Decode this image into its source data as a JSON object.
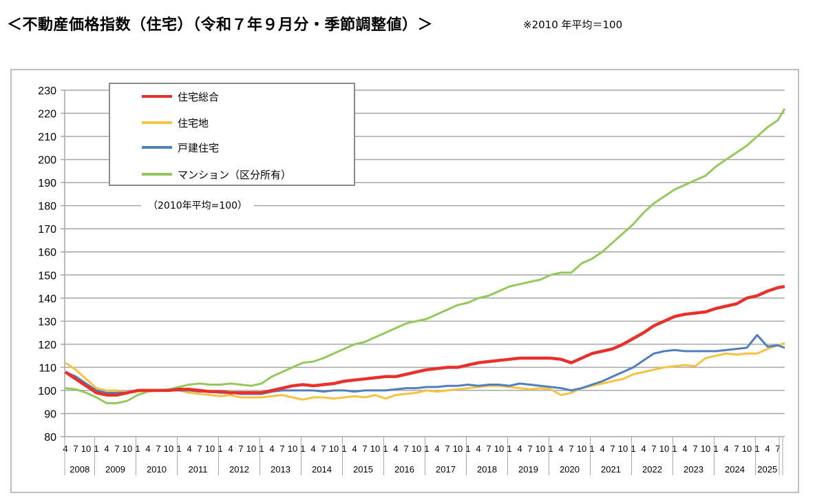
{
  "header": {
    "title": "＜不動産価格指数（住宅）（令和７年９月分・季節調整値）＞",
    "note": "※2010 年平均＝100"
  },
  "chart_data": {
    "type": "line",
    "annotation": "（2010年平均=100）",
    "ylim": [
      80,
      230
    ],
    "y_ticks": [
      "80",
      "90",
      "100",
      "110",
      "120",
      "130",
      "140",
      "150",
      "160",
      "170",
      "180",
      "190",
      "200",
      "210",
      "220",
      "230"
    ],
    "grid": true,
    "legend_position": "top-left",
    "x_axis": {
      "years": [
        {
          "year": "2008",
          "months": [
            "4",
            "7",
            "10"
          ]
        },
        {
          "year": "2009",
          "months": [
            "1",
            "4",
            "7",
            "10"
          ]
        },
        {
          "year": "2010",
          "months": [
            "1",
            "4",
            "7",
            "10"
          ]
        },
        {
          "year": "2011",
          "months": [
            "1",
            "4",
            "7",
            "10"
          ]
        },
        {
          "year": "2012",
          "months": [
            "1",
            "4",
            "7",
            "10"
          ]
        },
        {
          "year": "2013",
          "months": [
            "1",
            "4",
            "7",
            "10"
          ]
        },
        {
          "year": "2014",
          "months": [
            "1",
            "4",
            "7",
            "10"
          ]
        },
        {
          "year": "2015",
          "months": [
            "1",
            "4",
            "7",
            "10"
          ]
        },
        {
          "year": "2016",
          "months": [
            "1",
            "4",
            "7",
            "10"
          ]
        },
        {
          "year": "2017",
          "months": [
            "1",
            "4",
            "7",
            "10"
          ]
        },
        {
          "year": "2018",
          "months": [
            "1",
            "4",
            "7",
            "10"
          ]
        },
        {
          "year": "2019",
          "months": [
            "1",
            "4",
            "7",
            "10"
          ]
        },
        {
          "year": "2020",
          "months": [
            "1",
            "4",
            "7",
            "10"
          ]
        },
        {
          "year": "2021",
          "months": [
            "1",
            "4",
            "7",
            "10"
          ]
        },
        {
          "year": "2022",
          "months": [
            "1",
            "4",
            "7",
            "10"
          ]
        },
        {
          "year": "2023",
          "months": [
            "1",
            "4",
            "7",
            "10"
          ]
        },
        {
          "year": "2024",
          "months": [
            "1",
            "4",
            "7",
            "10"
          ]
        },
        {
          "year": "2025",
          "months": [
            "1",
            "4",
            "7"
          ]
        }
      ]
    },
    "x": [
      "2008-04",
      "2008-07",
      "2008-10",
      "2009-01",
      "2009-04",
      "2009-07",
      "2009-10",
      "2010-01",
      "2010-04",
      "2010-07",
      "2010-10",
      "2011-01",
      "2011-04",
      "2011-07",
      "2011-10",
      "2012-01",
      "2012-04",
      "2012-07",
      "2012-10",
      "2013-01",
      "2013-04",
      "2013-07",
      "2013-10",
      "2014-01",
      "2014-04",
      "2014-07",
      "2014-10",
      "2015-01",
      "2015-04",
      "2015-07",
      "2015-10",
      "2016-01",
      "2016-04",
      "2016-07",
      "2016-10",
      "2017-01",
      "2017-04",
      "2017-07",
      "2017-10",
      "2018-01",
      "2018-04",
      "2018-07",
      "2018-10",
      "2019-01",
      "2019-04",
      "2019-07",
      "2019-10",
      "2020-01",
      "2020-04",
      "2020-07",
      "2020-10",
      "2021-01",
      "2021-04",
      "2021-07",
      "2021-10",
      "2022-01",
      "2022-04",
      "2022-07",
      "2022-10",
      "2023-01",
      "2023-04",
      "2023-07",
      "2023-10",
      "2024-01",
      "2024-04",
      "2024-07",
      "2024-10",
      "2025-01",
      "2025-04",
      "2025-07",
      "2025-09"
    ],
    "series": [
      {
        "name": "住宅総合",
        "color": "#e8312a",
        "width": 4.5,
        "values": [
          108,
          105,
          102,
          99,
          98,
          98,
          99,
          100,
          100,
          100,
          100,
          100.5,
          100.5,
          100,
          99.5,
          99.5,
          99,
          99,
          99,
          99,
          100,
          101,
          102,
          102.5,
          102,
          102.5,
          103,
          104,
          104.5,
          105,
          105.5,
          106,
          106,
          107,
          108,
          109,
          109.5,
          110,
          110,
          111,
          112,
          112.5,
          113,
          113.5,
          114,
          114,
          114,
          114,
          113.5,
          112,
          114,
          116,
          117,
          118,
          120,
          122.5,
          125,
          128,
          130,
          132,
          133,
          133.5,
          134,
          135.5,
          136.5,
          137.5,
          140,
          141,
          143,
          144.5,
          145
        ]
      },
      {
        "name": "住宅地",
        "color": "#f7c142",
        "width": 3,
        "values": [
          112,
          109,
          105,
          101,
          100,
          100,
          99,
          99.5,
          100,
          100,
          100,
          100,
          99,
          98.5,
          98,
          97.5,
          98,
          97,
          97,
          97,
          97.5,
          98,
          97,
          96,
          97,
          97,
          96.5,
          97,
          97.5,
          97,
          98,
          96.5,
          98,
          98.5,
          99,
          100,
          99.5,
          100,
          100.5,
          101,
          101.5,
          102,
          102,
          101.5,
          101,
          100.5,
          101,
          100.5,
          98,
          99,
          101,
          102,
          103,
          104,
          105,
          107,
          108,
          109,
          110,
          110.5,
          111,
          110.5,
          114,
          115,
          116,
          115.5,
          116,
          116,
          118,
          119.5,
          120.5
        ]
      },
      {
        "name": "戸建住宅",
        "color": "#4f7fbf",
        "width": 3,
        "values": [
          108,
          106,
          103,
          100,
          99,
          99,
          99,
          100,
          100,
          100,
          100,
          100,
          100,
          99.5,
          99.5,
          99,
          99,
          98.5,
          98.5,
          98.5,
          99.5,
          100,
          100,
          100,
          100,
          99.5,
          100,
          100,
          99.5,
          100,
          100,
          100,
          100.5,
          101,
          101,
          101.5,
          101.5,
          102,
          102,
          102.5,
          102,
          102.5,
          102.5,
          102,
          103,
          102.5,
          102,
          101.5,
          101,
          100,
          101,
          102.5,
          104,
          106,
          108,
          110,
          113,
          116,
          117,
          117.5,
          117,
          117,
          117,
          117,
          117.5,
          118,
          118.5,
          124,
          119,
          119.5,
          118.5
        ]
      },
      {
        "name": "マンション（区分所有）",
        "color": "#93c95a",
        "width": 3,
        "values": [
          101,
          100.5,
          99,
          97,
          94.5,
          94.5,
          95.5,
          98,
          99.5,
          100,
          100.5,
          101.5,
          102.5,
          103,
          102.5,
          102.5,
          103,
          102.5,
          102,
          103,
          106,
          108,
          110,
          112,
          112.5,
          114,
          116,
          118,
          120,
          121,
          123,
          125,
          127,
          129,
          130,
          131,
          133,
          135,
          137,
          138,
          140,
          141,
          143,
          145,
          146,
          147,
          148,
          150,
          151,
          151,
          155,
          157,
          160,
          164,
          168,
          172,
          177,
          181,
          184,
          187,
          189,
          191,
          193,
          197,
          200,
          203,
          206,
          210,
          214,
          217,
          222
        ]
      }
    ]
  }
}
